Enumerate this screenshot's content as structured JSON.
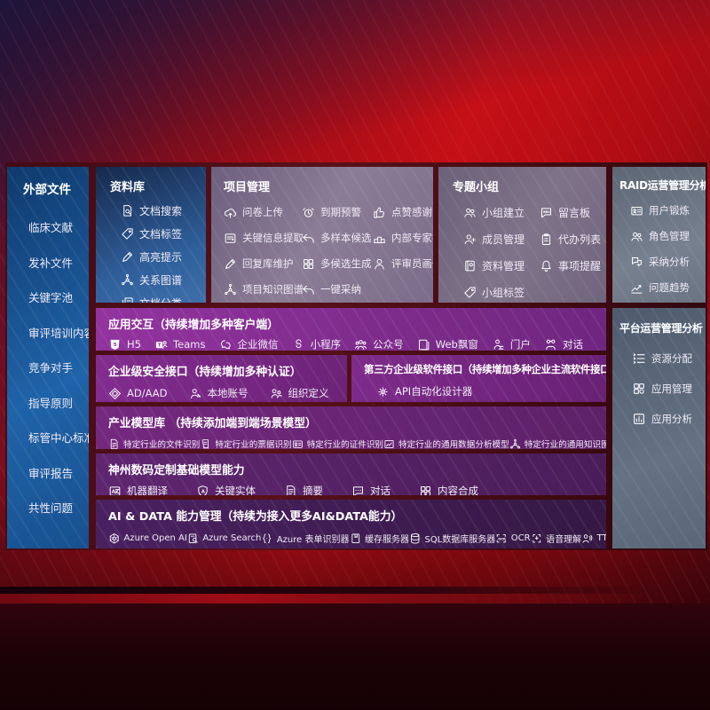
{
  "colors": {
    "accent_purple": "#7c2b8a",
    "panel_blue": "#1f63a8",
    "slide_backdrop": "#420b14",
    "highlight_red": "#c60f16"
  },
  "sidebar": {
    "title": "外部文件",
    "items": [
      {
        "label": "临床文献"
      },
      {
        "label": "发补文件"
      },
      {
        "label": "关键字池"
      },
      {
        "label": "审评培训内容"
      },
      {
        "label": "竞争对手"
      },
      {
        "label": "指导原则"
      },
      {
        "label": "标管中心标准"
      },
      {
        "label": "审评报告"
      },
      {
        "label": "共性问题"
      }
    ]
  },
  "columns": {
    "repo": {
      "title": "资料库",
      "items": [
        {
          "icon": "doc-search-icon",
          "label": "文档搜索"
        },
        {
          "icon": "tag-icon",
          "label": "文档标签"
        },
        {
          "icon": "highlight-pen-icon",
          "label": "高亮提示"
        },
        {
          "icon": "knowledge-graph-icon",
          "label": "关系图谱"
        },
        {
          "icon": "doc-copy-icon",
          "label": "文档分类"
        }
      ]
    },
    "project": {
      "title": "项目管理",
      "items": [
        {
          "icon": "cloud-upload-icon",
          "label": "问卷上传"
        },
        {
          "icon": "alarm-icon",
          "label": "到期预警"
        },
        {
          "icon": "thumbs-up-icon",
          "label": "点赞感谢"
        },
        {
          "icon": "doc-extract-icon",
          "label": "关键信息提取"
        },
        {
          "icon": "reply-arrow-icon",
          "label": "多样本候选"
        },
        {
          "icon": "ranking-podium-icon",
          "label": "内部专家排名"
        },
        {
          "icon": "edit-pen-icon",
          "label": "回复库维护"
        },
        {
          "icon": "puzzle-icon",
          "label": "多候选生成"
        },
        {
          "icon": "person-icon",
          "label": "评审员画像"
        },
        {
          "icon": "project-graph-icon",
          "label": "项目知识图谱"
        },
        {
          "icon": "adopt-arrow-icon",
          "label": "一键采纳"
        }
      ]
    },
    "groups": {
      "title": "专题小组",
      "items": [
        {
          "icon": "team-build-icon",
          "label": "小组建立"
        },
        {
          "icon": "message-board-icon",
          "label": "留言板"
        },
        {
          "icon": "member-manage-icon",
          "label": "成员管理"
        },
        {
          "icon": "todo-list-icon",
          "label": "代办列表"
        },
        {
          "icon": "album-icon",
          "label": "资料管理"
        },
        {
          "icon": "bell-icon",
          "label": "事项提醒"
        },
        {
          "icon": "group-tag-icon",
          "label": "小组标签"
        }
      ]
    },
    "raid": {
      "title": "RAID运营管理分析",
      "items": [
        {
          "icon": "user-card-icon",
          "label": "用户锻炼"
        },
        {
          "icon": "role-people-icon",
          "label": "角色管理"
        },
        {
          "icon": "adoption-analysis-icon",
          "label": "采纳分析"
        },
        {
          "icon": "trend-icon",
          "label": "问题趋势"
        }
      ]
    },
    "platform": {
      "title": "平台运营管理分析",
      "items": [
        {
          "icon": "resource-list-icon",
          "label": "资源分配"
        },
        {
          "icon": "app-grid-icon",
          "label": "应用管理"
        },
        {
          "icon": "app-analysis-icon",
          "label": "应用分析"
        }
      ]
    }
  },
  "rows": {
    "interaction": {
      "title": "应用交互（持续增加多种客户端）",
      "items": [
        {
          "icon": "h5-icon",
          "label": "H5"
        },
        {
          "icon": "teams-icon",
          "label": "Teams"
        },
        {
          "icon": "wecom-icon",
          "label": "企业微信"
        },
        {
          "icon": "miniprogram-icon",
          "label": "小程序"
        },
        {
          "icon": "official-account-icon",
          "label": "公众号"
        },
        {
          "icon": "web-window-icon",
          "label": "Web飘窗"
        },
        {
          "icon": "portal-icon",
          "label": "门户"
        },
        {
          "icon": "dialog-icon",
          "label": "对话"
        }
      ]
    },
    "security": {
      "title": "企业级安全接口（持续增加多种认证）",
      "items": [
        {
          "icon": "ad-aad-icon",
          "label": "AD/AAD"
        },
        {
          "icon": "local-account-icon",
          "label": "本地账号"
        },
        {
          "icon": "org-define-icon",
          "label": "组织定义"
        }
      ]
    },
    "thirdparty": {
      "title": "第三方企业级软件接口（持续增加多种企业主流软件接口）",
      "items": [
        {
          "icon": "api-designer-icon",
          "label": "API自动化设计器"
        }
      ]
    },
    "industry": {
      "title": "产业模型库 （持续添加端到端场景模型）",
      "items": [
        {
          "icon": "file-recognition-icon",
          "label": "特定行业的文件识别"
        },
        {
          "icon": "receipt-icon",
          "label": "特定行业的票据识别"
        },
        {
          "icon": "id-recognition-icon",
          "label": "特定行业的证件识别"
        },
        {
          "icon": "data-analysis-model-icon",
          "label": "特定行业的通用数据分析模型"
        },
        {
          "icon": "graph-model-icon",
          "label": "特定行业的通用知识图谱模型"
        }
      ]
    },
    "base": {
      "title": "神州数码定制基础模型能力",
      "items": [
        {
          "icon": "translate-icon",
          "label": "机器翻译"
        },
        {
          "icon": "entity-shield-icon",
          "label": "关键实体"
        },
        {
          "icon": "summary-doc-icon",
          "label": "摘要"
        },
        {
          "icon": "chat-icon",
          "label": "对话"
        },
        {
          "icon": "compose-puzzle-icon",
          "label": "内容合成"
        }
      ]
    },
    "aidata": {
      "title": "AI & DATA 能力管理（持续为接入更多AI&DATA能力）",
      "items": [
        {
          "icon": "openai-icon",
          "label": "Azure Open AI"
        },
        {
          "icon": "azure-search-icon",
          "label": "Azure Search"
        },
        {
          "icon": "form-recognizer-icon",
          "label": "Azure 表单识别器"
        },
        {
          "icon": "cache-server-icon",
          "label": "缓存服务器"
        },
        {
          "icon": "sql-db-icon",
          "label": "SQL数据库服务器"
        },
        {
          "icon": "ocr-icon",
          "label": "OCR"
        },
        {
          "icon": "speech-icon",
          "label": "语音理解"
        },
        {
          "icon": "tts-icon",
          "label": "TTS"
        }
      ]
    }
  }
}
